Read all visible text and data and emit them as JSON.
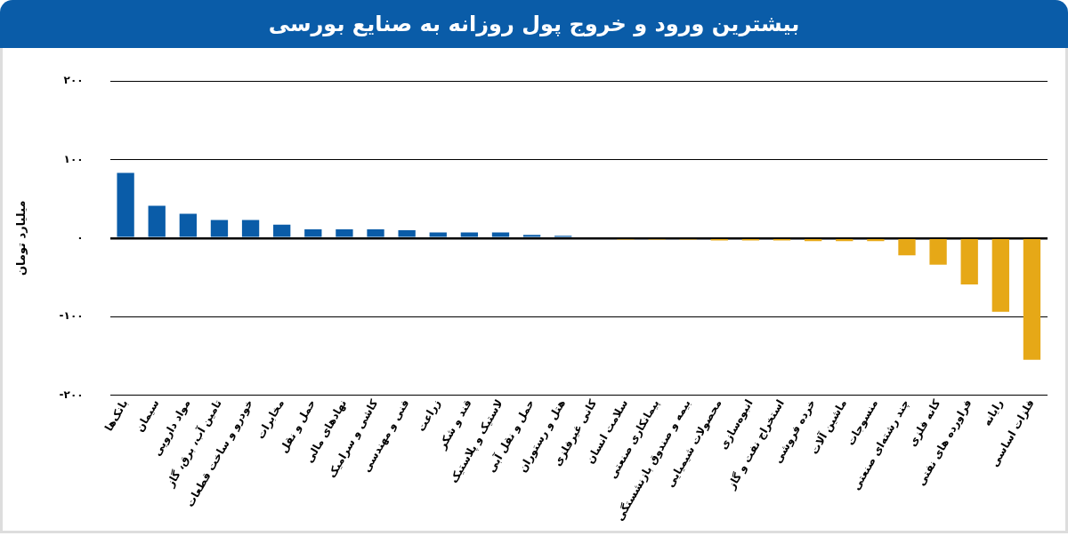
{
  "chart_data": {
    "type": "bar",
    "title": "بیشترین ورود و خروج پول روزانه به صنایع بورسی",
    "ylabel": "میلیارد تومان",
    "categories": [
      "بانک‌ها",
      "سیمان",
      "مواد دارویی",
      "تامین آب، برق، گاز",
      "خودرو و ساخت قطعات",
      "مخابرات",
      "حمل و نقل",
      "نهادهای مالی",
      "کاشی و سرامیک",
      "فنی و مهندسی",
      "زراعت",
      "قند و شکر",
      "لاستیک و پلاستیک",
      "حمل و نقل آبی",
      "هتل و رستوران",
      "کانی غیرفلزی",
      "سلامت انسان",
      "پیمانکاری صنعتی",
      "بیمه و صندوق بازنشستگی",
      "محصولات شیمیایی",
      "انبوه‌سازی",
      "استخراج نفت و گاز",
      "خرده فروشی",
      "ماشین آلات",
      "منسوجات",
      "چند رشته‌ای صنعتی",
      "کانه فلزی",
      "فراورده های نفتی",
      "رایانه",
      "فلزات اساسی"
    ],
    "values": [
      83,
      41,
      31,
      23,
      23,
      17,
      11,
      11,
      11,
      10,
      7,
      7,
      7,
      4,
      3,
      0,
      -2,
      -2,
      -2,
      -3,
      -3,
      -3,
      -4,
      -4,
      -4,
      -22,
      -34,
      -59,
      -94,
      -155
    ],
    "colors": [
      "#0a5ca8",
      "#0a5ca8",
      "#0a5ca8",
      "#0a5ca8",
      "#0a5ca8",
      "#0a5ca8",
      "#0a5ca8",
      "#0a5ca8",
      "#0a5ca8",
      "#0a5ca8",
      "#0a5ca8",
      "#0a5ca8",
      "#0a5ca8",
      "#0a5ca8",
      "#0a5ca8",
      "#0a5ca8",
      "#e6a817",
      "#e6a817",
      "#e6a817",
      "#e6a817",
      "#e6a817",
      "#e6a817",
      "#e6a817",
      "#e6a817",
      "#e6a817",
      "#e6a817",
      "#e6a817",
      "#e6a817",
      "#e6a817",
      "#e6a817"
    ],
    "ylim": [
      -200,
      200
    ],
    "yticks": [
      {
        "value": -200,
        "label": "-۲۰۰"
      },
      {
        "value": -100,
        "label": "-۱۰۰"
      },
      {
        "value": 0,
        "label": "۰"
      },
      {
        "value": 100,
        "label": "۱۰۰"
      },
      {
        "value": 200,
        "label": "۲۰۰"
      }
    ],
    "grid": "y",
    "legend": false
  }
}
